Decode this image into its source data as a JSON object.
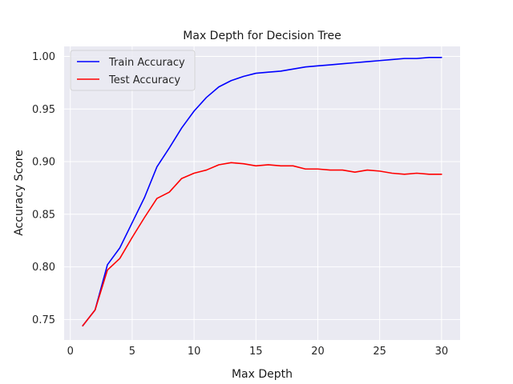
{
  "chart_data": {
    "type": "line",
    "title": "Max Depth for Decision Tree",
    "xlabel": "Max Depth",
    "ylabel": "Accuracy Score",
    "xlim": [
      -0.5,
      31.5
    ],
    "ylim": [
      0.7305,
      1.0095
    ],
    "xticks": [
      0,
      5,
      10,
      15,
      20,
      25,
      30
    ],
    "yticks": [
      0.75,
      0.8,
      0.85,
      0.9,
      0.95,
      1.0
    ],
    "ytick_labels": [
      "0.75",
      "0.80",
      "0.85",
      "0.90",
      "0.95",
      "1.00"
    ],
    "grid": true,
    "legend_position": "top-left",
    "background_color": "#eaeaf2",
    "x": [
      1,
      2,
      3,
      4,
      5,
      6,
      7,
      8,
      9,
      10,
      11,
      12,
      13,
      14,
      15,
      16,
      17,
      18,
      19,
      20,
      21,
      22,
      23,
      24,
      25,
      26,
      27,
      28,
      29,
      30
    ],
    "series": [
      {
        "name": "Train Accuracy",
        "color": "#0000ff",
        "values": [
          0.744,
          0.759,
          0.802,
          0.818,
          0.842,
          0.866,
          0.895,
          0.913,
          0.932,
          0.948,
          0.961,
          0.971,
          0.977,
          0.981,
          0.984,
          0.985,
          0.986,
          0.988,
          0.99,
          0.991,
          0.992,
          0.993,
          0.994,
          0.995,
          0.996,
          0.997,
          0.998,
          0.998,
          0.999,
          0.999
        ]
      },
      {
        "name": "Test Accuracy",
        "color": "#ff0000",
        "values": [
          0.744,
          0.759,
          0.797,
          0.808,
          0.828,
          0.847,
          0.865,
          0.871,
          0.884,
          0.889,
          0.892,
          0.897,
          0.899,
          0.898,
          0.896,
          0.897,
          0.896,
          0.896,
          0.893,
          0.893,
          0.892,
          0.892,
          0.89,
          0.892,
          0.891,
          0.889,
          0.888,
          0.889,
          0.888,
          0.888
        ]
      }
    ]
  }
}
